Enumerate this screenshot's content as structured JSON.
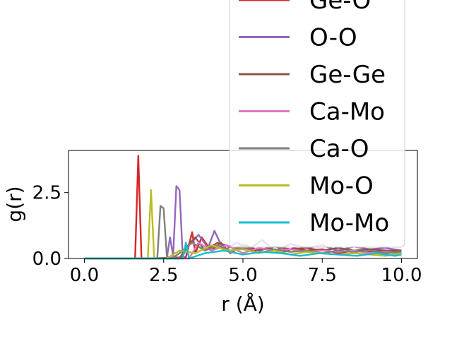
{
  "chart_data": {
    "type": "line",
    "xlabel": "r (Å)",
    "ylabel": "g(r)",
    "xlim": [
      -0.5,
      10.5
    ],
    "ylim": [
      0,
      4.1
    ],
    "xticks": [
      {
        "value": 0.0,
        "label": "0.0"
      },
      {
        "value": 2.5,
        "label": "2.5"
      },
      {
        "value": 5.0,
        "label": "5.0"
      },
      {
        "value": 7.5,
        "label": "7.5"
      },
      {
        "value": 10.0,
        "label": "10.0"
      }
    ],
    "yticks": [
      {
        "value": 0.0,
        "label": "0.0"
      },
      {
        "value": 2.5,
        "label": "2.5"
      }
    ],
    "grid": false,
    "legend_position": "upper right (extends above axes)",
    "series": [
      {
        "name": "Ge-O",
        "color": "#d62728",
        "x": [
          0,
          1.6,
          1.7,
          1.8,
          2.0,
          3.2,
          3.4,
          3.5,
          3.7,
          4.0,
          4.3,
          4.6,
          5.0,
          5.4,
          5.8,
          6.2,
          6.6,
          7.0,
          7.5,
          8.0,
          8.5,
          9.0,
          9.5,
          10.0
        ],
        "y": [
          0,
          0,
          3.9,
          0,
          0,
          0.05,
          1.0,
          0.2,
          0.8,
          0.3,
          0.6,
          0.2,
          0.5,
          0.3,
          0.4,
          0.2,
          0.4,
          0.3,
          0.35,
          0.2,
          0.3,
          0.25,
          0.3,
          0.2
        ]
      },
      {
        "name": "O-O",
        "color": "#9467bd",
        "x": [
          0,
          2.6,
          2.7,
          2.8,
          2.9,
          3.0,
          3.1,
          3.3,
          3.6,
          3.9,
          4.1,
          4.4,
          4.8,
          5.2,
          5.6,
          6.0,
          6.5,
          7.0,
          7.5,
          8.0,
          8.5,
          9.0,
          9.5,
          10.0
        ],
        "y": [
          0,
          0,
          0.8,
          0.1,
          2.75,
          2.6,
          0.1,
          0.5,
          0.9,
          0.4,
          1.05,
          0.3,
          0.6,
          0.35,
          0.7,
          0.3,
          0.55,
          0.4,
          0.5,
          0.3,
          0.45,
          0.35,
          0.4,
          0.3
        ]
      },
      {
        "name": "Ge-Ge",
        "color": "#8c564b",
        "x": [
          0,
          3.0,
          3.2,
          3.5,
          3.8,
          4.2,
          4.7,
          5.1,
          5.5,
          6.0,
          6.5,
          7.0,
          7.5,
          8.0,
          8.5,
          9.0,
          9.5,
          10.0
        ],
        "y": [
          0,
          0,
          0.4,
          0.8,
          0.3,
          0.6,
          0.4,
          0.5,
          0.3,
          0.45,
          0.35,
          0.4,
          0.3,
          0.4,
          0.3,
          0.35,
          0.3,
          0.3
        ]
      },
      {
        "name": "Ca-Mo",
        "color": "#e377c2",
        "x": [
          0,
          3.3,
          3.6,
          4.0,
          4.5,
          5.0,
          5.5,
          6.0,
          6.5,
          7.0,
          7.5,
          8.0,
          8.5,
          9.0,
          9.5,
          10.0
        ],
        "y": [
          0,
          0,
          0.6,
          0.3,
          0.5,
          0.2,
          0.4,
          0.3,
          0.35,
          0.25,
          0.3,
          0.25,
          0.3,
          0.2,
          0.25,
          0.2
        ]
      },
      {
        "name": "Ca-O",
        "color": "#7f7f7f",
        "x": [
          0,
          2.3,
          2.4,
          2.5,
          2.6,
          2.75,
          3.0,
          3.4,
          3.8,
          4.2,
          4.6,
          5.0,
          5.5,
          6.0,
          6.5,
          7.0,
          7.5,
          8.0,
          8.5,
          9.0,
          9.5,
          10.0
        ],
        "y": [
          0,
          0,
          2.0,
          1.9,
          0.1,
          0,
          0.2,
          0.6,
          0.3,
          0.5,
          0.3,
          0.4,
          0.2,
          0.35,
          0.25,
          0.3,
          0.2,
          0.3,
          0.25,
          0.3,
          0.2,
          0.25
        ]
      },
      {
        "name": "Mo-O",
        "color": "#bcbd22",
        "x": [
          0,
          2.0,
          2.1,
          2.2,
          2.6,
          3.0,
          3.5,
          4.0,
          4.5,
          5.0,
          5.5,
          6.0,
          6.5,
          7.0,
          7.5,
          8.0,
          8.5,
          9.0,
          9.5,
          10.0
        ],
        "y": [
          0,
          0,
          2.6,
          0,
          0,
          0.3,
          0.2,
          0.5,
          0.3,
          0.35,
          0.2,
          0.3,
          0.15,
          0.25,
          0.2,
          0.15,
          0.2,
          0.15,
          0.1,
          0.2
        ]
      },
      {
        "name": "Mo-Mo",
        "color": "#17becf",
        "x": [
          0,
          3.1,
          3.2,
          3.3,
          3.8,
          4.4,
          5.0,
          5.6,
          6.2,
          6.8,
          7.4,
          8.0,
          8.6,
          9.2,
          9.8,
          10.0
        ],
        "y": [
          0,
          0,
          0.6,
          0,
          0.2,
          0.3,
          0.15,
          0.25,
          0.2,
          0.1,
          0.2,
          0.15,
          0.1,
          0.2,
          0.1,
          0.15
        ]
      }
    ]
  }
}
